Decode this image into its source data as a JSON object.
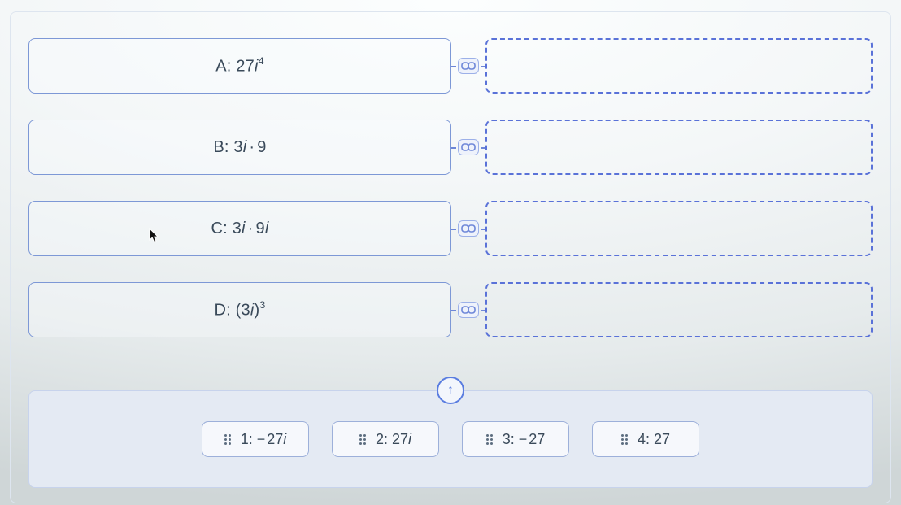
{
  "colors": {
    "border_blue": "#7d98d6",
    "dash_blue": "#5a72d8",
    "bank_bg": "#e4eaf3",
    "bank_border": "#c7d3ec",
    "chip_bg": "#f6f8fc",
    "chip_border": "#9db0da",
    "text": "#3a4a5a",
    "accent": "#5a7de0"
  },
  "prompts": [
    {
      "letter": "A",
      "expr_html": "27<span class=\"mi\">i</span><span class=\"sup\">4</span>"
    },
    {
      "letter": "B",
      "expr_html": "3<span class=\"mi\">i</span><span class=\"dot\">·</span>9"
    },
    {
      "letter": "C",
      "expr_html": "3<span class=\"mi\">i</span><span class=\"dot\">·</span>9<span class=\"mi\">i</span>"
    },
    {
      "letter": "D",
      "expr_html": "(3<span class=\"mi\">i</span>)<span class=\"sup\">3</span>"
    }
  ],
  "choices": [
    {
      "num": "1",
      "expr_html": "<span class=\"minus\">−</span>27<span class=\"mi\">i</span>"
    },
    {
      "num": "2",
      "expr_html": "27<span class=\"mi\">i</span>"
    },
    {
      "num": "3",
      "expr_html": "<span class=\"minus\">−</span>27"
    },
    {
      "num": "4",
      "expr_html": "27"
    }
  ],
  "labels": {
    "up_arrow": "↑"
  }
}
